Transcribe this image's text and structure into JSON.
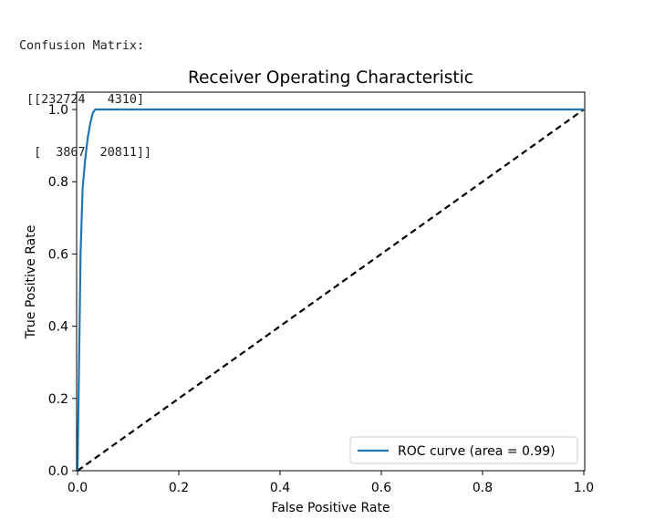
{
  "console": {
    "lines": [
      "Confusion Matrix:",
      " [[232724   4310]",
      "  [  3867  20811]]"
    ]
  },
  "colors": {
    "roc_curve": "#1f77b4",
    "diagonal": "#000000",
    "axes": "#000000",
    "legend_border": "#cccccc"
  },
  "chart_data": {
    "type": "line",
    "title": "Receiver Operating Characteristic",
    "xlabel": "False Positive Rate",
    "ylabel": "True Positive Rate",
    "xlim": [
      0.0,
      1.0
    ],
    "ylim": [
      0.0,
      1.0
    ],
    "x_ticks": [
      "0.0",
      "0.2",
      "0.4",
      "0.6",
      "0.8",
      "1.0"
    ],
    "y_ticks": [
      "0.0",
      "0.2",
      "0.4",
      "0.6",
      "0.8",
      "1.0"
    ],
    "grid": false,
    "legend_position": "lower right",
    "series": [
      {
        "name": "ROC curve (area = 0.99)",
        "style": "solid",
        "x": [
          0.0,
          0.003,
          0.006,
          0.01,
          0.015,
          0.02,
          0.025,
          0.03,
          0.035,
          0.04,
          0.1,
          0.5,
          1.0
        ],
        "y": [
          0.0,
          0.3,
          0.6,
          0.78,
          0.86,
          0.92,
          0.96,
          0.99,
          1.0,
          1.0,
          1.0,
          1.0,
          1.0
        ]
      },
      {
        "style": "dashed",
        "x": [
          0.0,
          1.0
        ],
        "y": [
          0.0,
          1.0
        ]
      }
    ]
  }
}
